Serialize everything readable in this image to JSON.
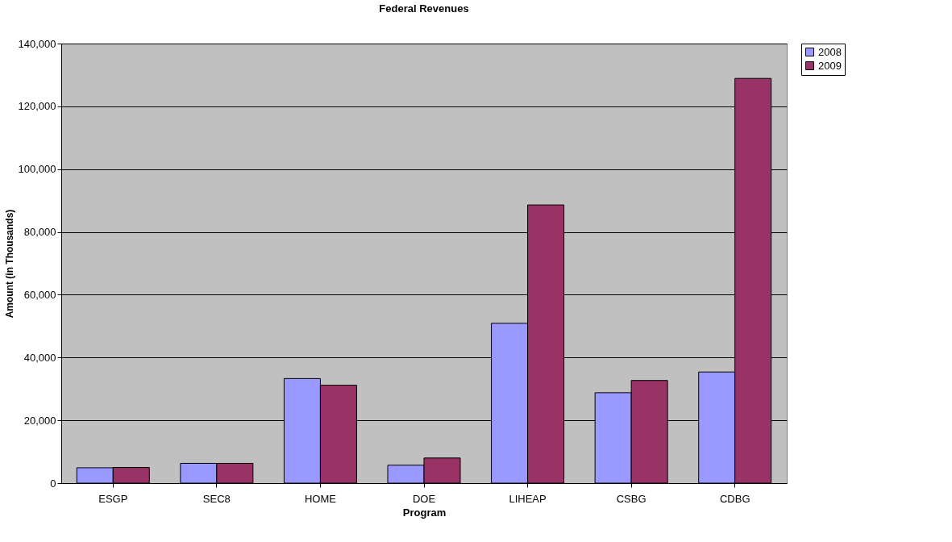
{
  "chart_data": {
    "type": "bar",
    "title": "Federal Revenues",
    "xlabel": "Program",
    "ylabel": "Amount (in Thousands)",
    "categories": [
      "ESGP",
      "SEC8",
      "HOME",
      "DOE",
      "LIHEAP",
      "CSBG",
      "CDBG"
    ],
    "series": [
      {
        "name": "2008",
        "color": "#9999ff",
        "values": [
          4900,
          6300,
          33300,
          5700,
          50900,
          28800,
          35400
        ]
      },
      {
        "name": "2009",
        "color": "#993366",
        "values": [
          5000,
          6300,
          31200,
          8000,
          88600,
          32700,
          128900
        ]
      }
    ],
    "ylim": [
      0,
      140000
    ],
    "yticks": [
      0,
      {
        "value": 20000,
        "label": "20,000"
      },
      {
        "value": 40000,
        "label": "40,000"
      },
      {
        "value": 60000,
        "label": "60,000"
      },
      {
        "value": 80000,
        "label": "80,000"
      },
      {
        "value": 100000,
        "label": "100,000"
      },
      {
        "value": 120000,
        "label": "120,000"
      },
      {
        "value": 140000,
        "label": "140,000"
      }
    ],
    "grid": "y",
    "legend": "right"
  }
}
